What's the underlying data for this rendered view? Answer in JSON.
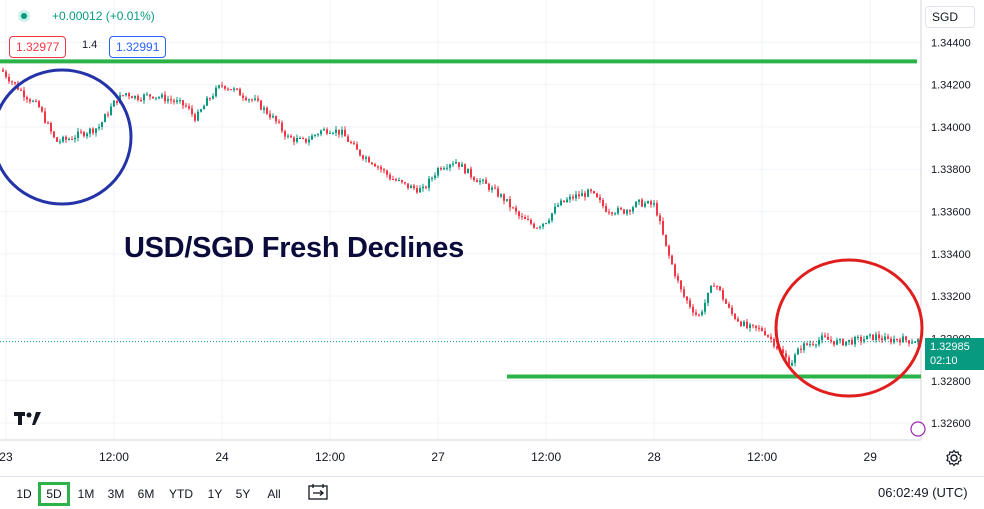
{
  "header": {
    "change": "+0.00012 (+0.01%)",
    "bid": "1.32977",
    "spread": "1.4",
    "ask": "1.32991",
    "currency": "SGD"
  },
  "annotation": {
    "headline": "USD/SGD Fresh Declines",
    "resistance_level": 1.3431,
    "support_level": 1.3282,
    "colors": {
      "levels": "#2bb34a",
      "circle_left": "#2433a8",
      "circle_right": "#e01e1e",
      "headline": "#0b0b3b"
    }
  },
  "last_price": {
    "price": "1.32985",
    "countdown": "02:10"
  },
  "footer": {
    "ranges": [
      "1D",
      "5D",
      "1M",
      "3M",
      "6M",
      "YTD",
      "1Y",
      "5Y",
      "All"
    ],
    "active_range": "5D",
    "clock": "06:02:49 (UTC)"
  },
  "icons": {
    "logo": "tradingview-logo-icon",
    "compare": "compare-icon",
    "settings": "settings-gear-icon",
    "status": "market-status-dot-icon"
  },
  "chart_data": {
    "type": "candlestick",
    "symbol": "USD/SGD",
    "ylim": [
      1.3252,
      1.346
    ],
    "y_ticks": [
      "1.34400",
      "1.34200",
      "1.34000",
      "1.33800",
      "1.33600",
      "1.33400",
      "1.33200",
      "1.33000",
      "1.32800",
      "1.32600"
    ],
    "y_tick_values": [
      1.344,
      1.342,
      1.34,
      1.338,
      1.336,
      1.334,
      1.332,
      1.33,
      1.328,
      1.326
    ],
    "x_ticks": [
      "23",
      "12:00",
      "24",
      "12:00",
      "27",
      "12:00",
      "28",
      "12:00",
      "29"
    ],
    "x_tick_positions": [
      0.0,
      1.0,
      2.0,
      3.0,
      4.0,
      5.0,
      6.0,
      7.0,
      8.0
    ],
    "x_range": [
      -0.055,
      8.47
    ],
    "series_x": [
      -0.05,
      0.0,
      0.15,
      0.3,
      0.45,
      0.55,
      0.7,
      0.85,
      1.0,
      1.1,
      1.2,
      1.35,
      1.5,
      1.65,
      1.75,
      1.85,
      1.95,
      2.0,
      2.15,
      2.3,
      2.45,
      2.6,
      2.75,
      2.9,
      3.0,
      3.1,
      3.25,
      3.4,
      3.55,
      3.7,
      3.85,
      4.0,
      4.15,
      4.3,
      4.45,
      4.6,
      4.75,
      4.9,
      5.0,
      5.1,
      5.25,
      5.4,
      5.55,
      5.7,
      5.85,
      6.0,
      6.1,
      6.25,
      6.4,
      6.55,
      6.7,
      6.85,
      7.0,
      7.1,
      7.25,
      7.35,
      7.45,
      7.55,
      7.7,
      7.85,
      7.95,
      8.05,
      8.15,
      8.25,
      8.35,
      8.45
    ],
    "series_close": [
      1.3427,
      1.3424,
      1.3416,
      1.3409,
      1.3393,
      1.3394,
      1.3397,
      1.34,
      1.3412,
      1.3416,
      1.3414,
      1.3415,
      1.3413,
      1.341,
      1.3404,
      1.3412,
      1.3418,
      1.342,
      1.3416,
      1.3412,
      1.3405,
      1.3395,
      1.3393,
      1.3398,
      1.3399,
      1.3397,
      1.3388,
      1.3383,
      1.3376,
      1.3372,
      1.337,
      1.3381,
      1.3384,
      1.3377,
      1.3372,
      1.3366,
      1.3357,
      1.3353,
      1.3356,
      1.3363,
      1.3367,
      1.3369,
      1.3361,
      1.336,
      1.3364,
      1.3363,
      1.3343,
      1.3321,
      1.331,
      1.3327,
      1.3312,
      1.3305,
      1.3304,
      1.3298,
      1.3288,
      1.3296,
      1.3298,
      1.33,
      1.3298,
      1.3299,
      1.33,
      1.3301,
      1.3299,
      1.33,
      1.3299,
      1.3299
    ]
  }
}
